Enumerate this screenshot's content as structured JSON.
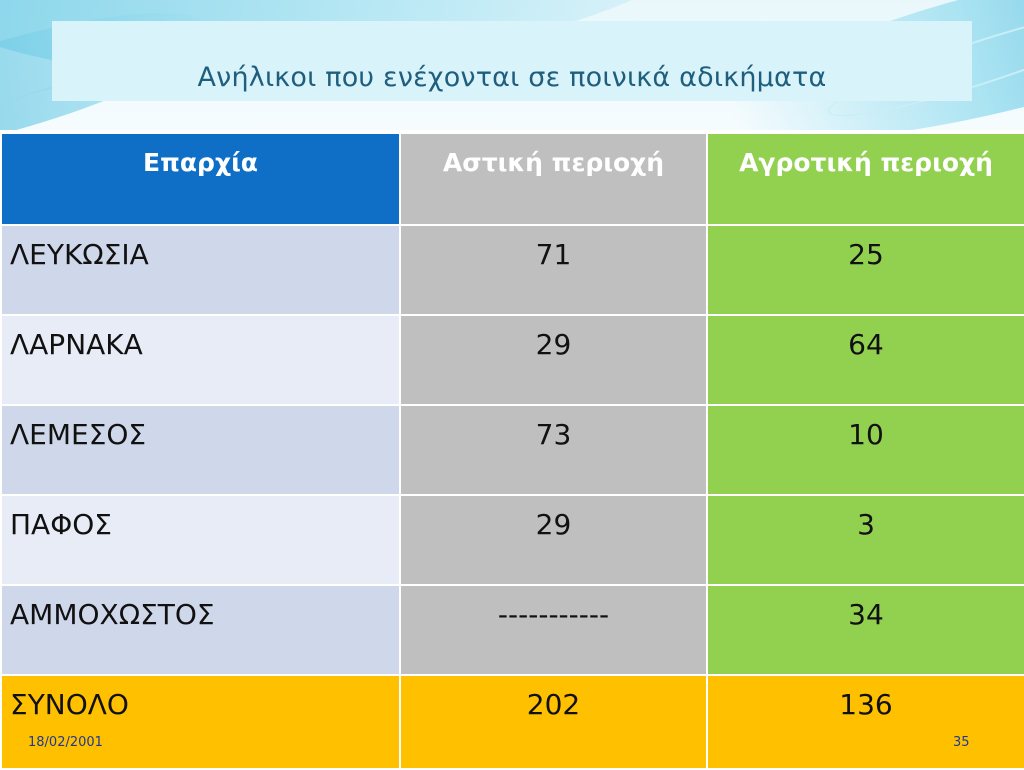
{
  "slide": {
    "title": "Ανήλικοι που ενέχονται σε ποινικά αδικήματα",
    "footer_date": "18/02/2001",
    "page_number": "35"
  },
  "table": {
    "headers": [
      "Επαρχία",
      "Αστική περιοχή",
      "Αγροτική περιοχή"
    ],
    "header_colors": [
      "#0f6fc6",
      "#bfbfbf",
      "#92d050"
    ],
    "rows": [
      {
        "region": "ΛΕΥΚΩΣΙΑ",
        "urban": "71",
        "rural": "25"
      },
      {
        "region": "ΛΑΡΝΑΚΑ",
        "urban": "29",
        "rural": "64"
      },
      {
        "region": "ΛΕΜΕΣΟΣ",
        "urban": "73",
        "rural": "10"
      },
      {
        "region": "ΠΑΦΟΣ",
        "urban": "29",
        "rural": "3"
      },
      {
        "region": "ΑΜΜΟΧΩΣΤΟΣ",
        "urban": "-----------",
        "rural": "34"
      }
    ],
    "total": {
      "region": "ΣΥΝΟΛΟ",
      "urban": "202",
      "rural": "136"
    },
    "total_color": "#ffc000"
  }
}
